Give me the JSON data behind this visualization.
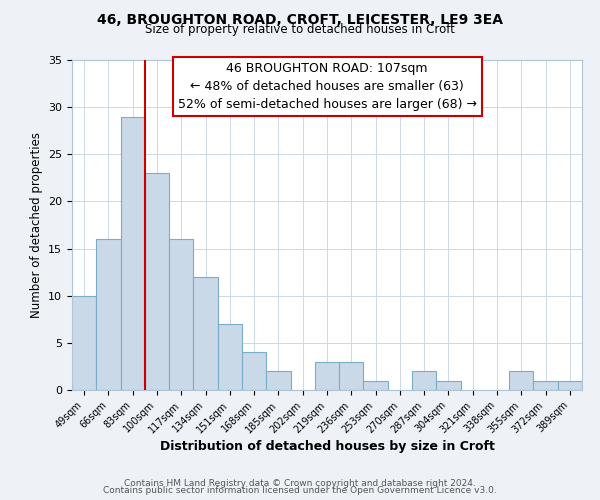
{
  "title1": "46, BROUGHTON ROAD, CROFT, LEICESTER, LE9 3EA",
  "title2": "Size of property relative to detached houses in Croft",
  "xlabel": "Distribution of detached houses by size in Croft",
  "ylabel": "Number of detached properties",
  "bar_labels": [
    "49sqm",
    "66sqm",
    "83sqm",
    "100sqm",
    "117sqm",
    "134sqm",
    "151sqm",
    "168sqm",
    "185sqm",
    "202sqm",
    "219sqm",
    "236sqm",
    "253sqm",
    "270sqm",
    "287sqm",
    "304sqm",
    "321sqm",
    "338sqm",
    "355sqm",
    "372sqm",
    "389sqm"
  ],
  "bar_values": [
    10,
    16,
    29,
    23,
    16,
    12,
    7,
    4,
    2,
    0,
    3,
    3,
    1,
    0,
    2,
    1,
    0,
    0,
    2,
    1,
    1
  ],
  "bar_color": "#c9d9e8",
  "bar_edgecolor": "#7aaec8",
  "vline_color": "#cc0000",
  "ylim": [
    0,
    35
  ],
  "yticks": [
    0,
    5,
    10,
    15,
    20,
    25,
    30,
    35
  ],
  "annotation_line1": "46 BROUGHTON ROAD: 107sqm",
  "annotation_line2": "← 48% of detached houses are smaller (63)",
  "annotation_line3": "52% of semi-detached houses are larger (68) →",
  "annotation_box_edgecolor": "#cc0000",
  "footnote1": "Contains HM Land Registry data © Crown copyright and database right 2024.",
  "footnote2": "Contains public sector information licensed under the Open Government Licence v3.0.",
  "background_color": "#eef2f7",
  "plot_background": "#ffffff",
  "grid_color": "#ccd8e5"
}
